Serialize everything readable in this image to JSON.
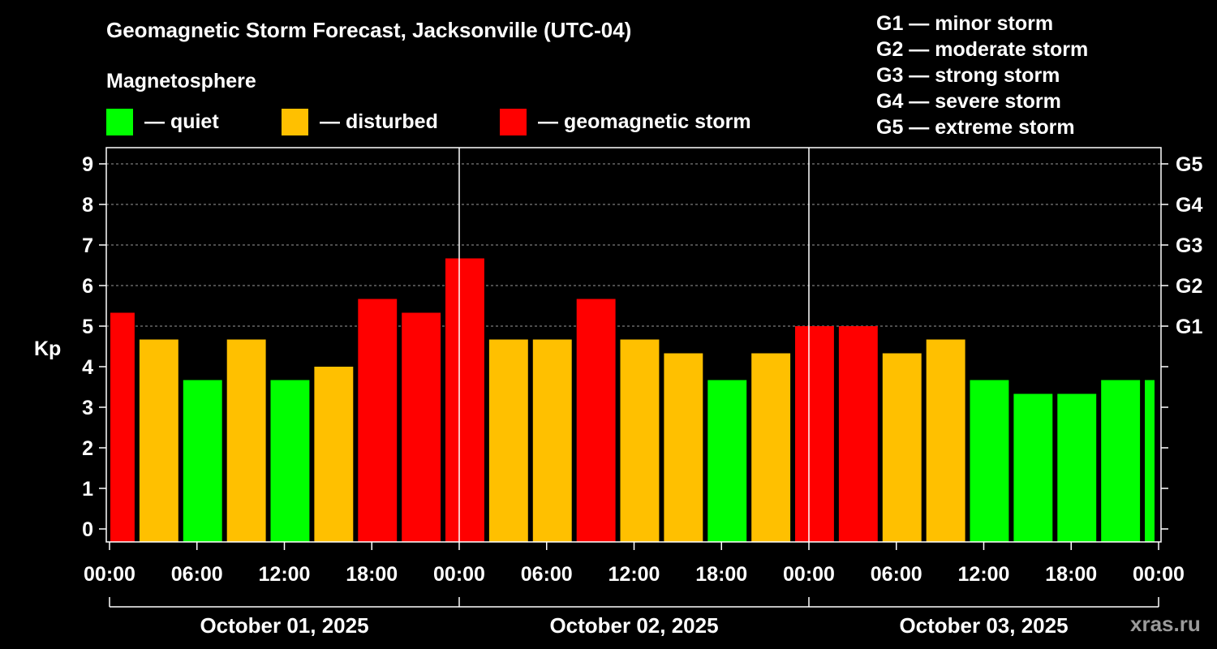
{
  "header": {
    "title": "Geomagnetic Storm Forecast, Jacksonville (UTC-04)",
    "subtitle": "Magnetosphere"
  },
  "legend": [
    {
      "label": "— quiet",
      "color": "#00ff00"
    },
    {
      "label": "— disturbed",
      "color": "#ffc000"
    },
    {
      "label": "— geomagnetic storm",
      "color": "#ff0000"
    }
  ],
  "storm_levels": [
    "G1 — minor storm",
    "G2 — moderate storm",
    "G3 — strong storm",
    "G4 — severe storm",
    "G5 — extreme storm"
  ],
  "watermark": "xras.ru",
  "chart_data": {
    "type": "bar",
    "title": "Geomagnetic Storm Forecast, Jacksonville (UTC-04)",
    "ylabel": "Kp",
    "ylim": [
      0,
      9
    ],
    "y_ticks": [
      "0",
      "1",
      "2",
      "3",
      "4",
      "5",
      "6",
      "7",
      "8",
      "9"
    ],
    "right_axis": [
      {
        "kp": 5,
        "label": "G1"
      },
      {
        "kp": 6,
        "label": "G2"
      },
      {
        "kp": 7,
        "label": "G3"
      },
      {
        "kp": 8,
        "label": "G4"
      },
      {
        "kp": 9,
        "label": "G5"
      }
    ],
    "x_range_hours": [
      0,
      72
    ],
    "x_ticks": [
      {
        "hour": 0,
        "label": "00:00"
      },
      {
        "hour": 6,
        "label": "06:00"
      },
      {
        "hour": 12,
        "label": "12:00"
      },
      {
        "hour": 18,
        "label": "18:00"
      },
      {
        "hour": 24,
        "label": "00:00"
      },
      {
        "hour": 30,
        "label": "06:00"
      },
      {
        "hour": 36,
        "label": "12:00"
      },
      {
        "hour": 42,
        "label": "18:00"
      },
      {
        "hour": 48,
        "label": "00:00"
      },
      {
        "hour": 54,
        "label": "06:00"
      },
      {
        "hour": 60,
        "label": "12:00"
      },
      {
        "hour": 66,
        "label": "18:00"
      },
      {
        "hour": 72,
        "label": "00:00"
      }
    ],
    "day_dividers_hours": [
      24,
      48
    ],
    "days": [
      {
        "label": "October 01, 2025",
        "start_hour": 0,
        "end_hour": 24
      },
      {
        "label": "October 02, 2025",
        "start_hour": 24,
        "end_hour": 48
      },
      {
        "label": "October 03, 2025",
        "start_hour": 48,
        "end_hour": 72
      }
    ],
    "bars": [
      {
        "start": 0,
        "end": 2,
        "kp": 5.33,
        "level": "storm"
      },
      {
        "start": 2,
        "end": 5,
        "kp": 4.67,
        "level": "disturbed"
      },
      {
        "start": 5,
        "end": 8,
        "kp": 3.67,
        "level": "quiet"
      },
      {
        "start": 8,
        "end": 11,
        "kp": 4.67,
        "level": "disturbed"
      },
      {
        "start": 11,
        "end": 14,
        "kp": 3.67,
        "level": "quiet"
      },
      {
        "start": 14,
        "end": 17,
        "kp": 4.0,
        "level": "disturbed"
      },
      {
        "start": 17,
        "end": 20,
        "kp": 5.67,
        "level": "storm"
      },
      {
        "start": 20,
        "end": 23,
        "kp": 5.33,
        "level": "storm"
      },
      {
        "start": 23,
        "end": 26,
        "kp": 6.67,
        "level": "storm"
      },
      {
        "start": 26,
        "end": 29,
        "kp": 4.67,
        "level": "disturbed"
      },
      {
        "start": 29,
        "end": 32,
        "kp": 4.67,
        "level": "disturbed"
      },
      {
        "start": 32,
        "end": 35,
        "kp": 5.67,
        "level": "storm"
      },
      {
        "start": 35,
        "end": 38,
        "kp": 4.67,
        "level": "disturbed"
      },
      {
        "start": 38,
        "end": 41,
        "kp": 4.33,
        "level": "disturbed"
      },
      {
        "start": 41,
        "end": 44,
        "kp": 3.67,
        "level": "quiet"
      },
      {
        "start": 44,
        "end": 47,
        "kp": 4.33,
        "level": "disturbed"
      },
      {
        "start": 47,
        "end": 50,
        "kp": 5.0,
        "level": "storm"
      },
      {
        "start": 50,
        "end": 53,
        "kp": 5.0,
        "level": "storm"
      },
      {
        "start": 53,
        "end": 56,
        "kp": 4.33,
        "level": "disturbed"
      },
      {
        "start": 56,
        "end": 59,
        "kp": 4.67,
        "level": "disturbed"
      },
      {
        "start": 59,
        "end": 62,
        "kp": 3.67,
        "level": "quiet"
      },
      {
        "start": 62,
        "end": 65,
        "kp": 3.33,
        "level": "quiet"
      },
      {
        "start": 65,
        "end": 68,
        "kp": 3.33,
        "level": "quiet"
      },
      {
        "start": 68,
        "end": 71,
        "kp": 3.67,
        "level": "quiet"
      },
      {
        "start": 71,
        "end": 72,
        "kp": 3.67,
        "level": "quiet"
      }
    ],
    "colors": {
      "quiet": "#00ff00",
      "disturbed": "#ffc000",
      "storm": "#ff0000"
    }
  }
}
